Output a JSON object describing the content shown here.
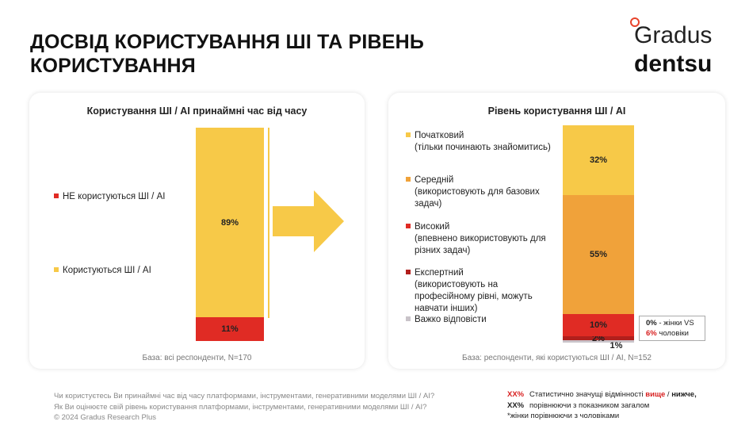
{
  "header": {
    "title_lines": [
      "ДОСВІД КОРИСТУВАННЯ ШІ ТА РІВЕНЬ",
      "КОРИСТУВАННЯ"
    ],
    "logo_top": "Gradus",
    "logo_bottom": "dentsu"
  },
  "chart_data": [
    {
      "type": "stacked_bar",
      "title": "Користування ШІ / AI принаймні час від часу",
      "series": [
        {
          "name": "НЕ користуються ШІ / AI",
          "color": "#e02b24",
          "values": [
            11
          ],
          "value_labels": [
            "11%"
          ]
        },
        {
          "name": "Користуються ШІ / AI",
          "color": "#f7c948",
          "values": [
            89
          ],
          "value_labels": [
            "89%"
          ]
        }
      ],
      "base": "База: всі респонденти, N=170"
    },
    {
      "type": "stacked_bar",
      "title": "Рівень користування ШІ / AI",
      "series": [
        {
          "name": "Важко відповісти",
          "color": "#c9c3c9",
          "values": [
            1
          ],
          "value_labels": [
            "1%"
          ]
        },
        {
          "name": "Експертний",
          "description": "(використовують на професійному рівні, можуть навчати інших)",
          "color": "#b11f1c",
          "values": [
            2
          ],
          "value_labels": [
            "2%"
          ]
        },
        {
          "name": "Високий",
          "description": "(впевнено використовують для різних задач)",
          "color": "#e02b24",
          "values": [
            10
          ],
          "value_labels": [
            "10%"
          ]
        },
        {
          "name": "Середній",
          "description": "(використовують для базових задач)",
          "color": "#f0a23a",
          "values": [
            55
          ],
          "value_labels": [
            "55%"
          ]
        },
        {
          "name": "Початковий",
          "description": "(тільки починають знайомитись)",
          "color": "#f7c948",
          "values": [
            32
          ],
          "value_labels": [
            "32%"
          ]
        }
      ],
      "annotation": {
        "women": "0%",
        "women_text": "- жінки VS",
        "men": "6%",
        "men_text": "чоловіки"
      },
      "base": "База: респонденти, які користуються ШІ / AI, N=152"
    }
  ],
  "footer": {
    "questions": [
      "Чи користуєтесь Ви принаймні час від часу платформами, інструментами, генеративними моделями ШІ / AI?",
      "Як Ви оцінюєте свій рівень користування платформами, інструментами, генеративними моделями ШІ / AI?",
      "© 2024 Gradus Research Plus"
    ],
    "notes": [
      {
        "marker": "XX%",
        "parts": [
          "Статистично значущі відмінності",
          "вище",
          "/",
          "нижче,"
        ]
      },
      {
        "marker": "XX%",
        "parts": [
          "порівнюючи з показником загалом"
        ]
      },
      {
        "parts": [
          "*жінки порівнюючи з чоловіками"
        ]
      }
    ]
  }
}
